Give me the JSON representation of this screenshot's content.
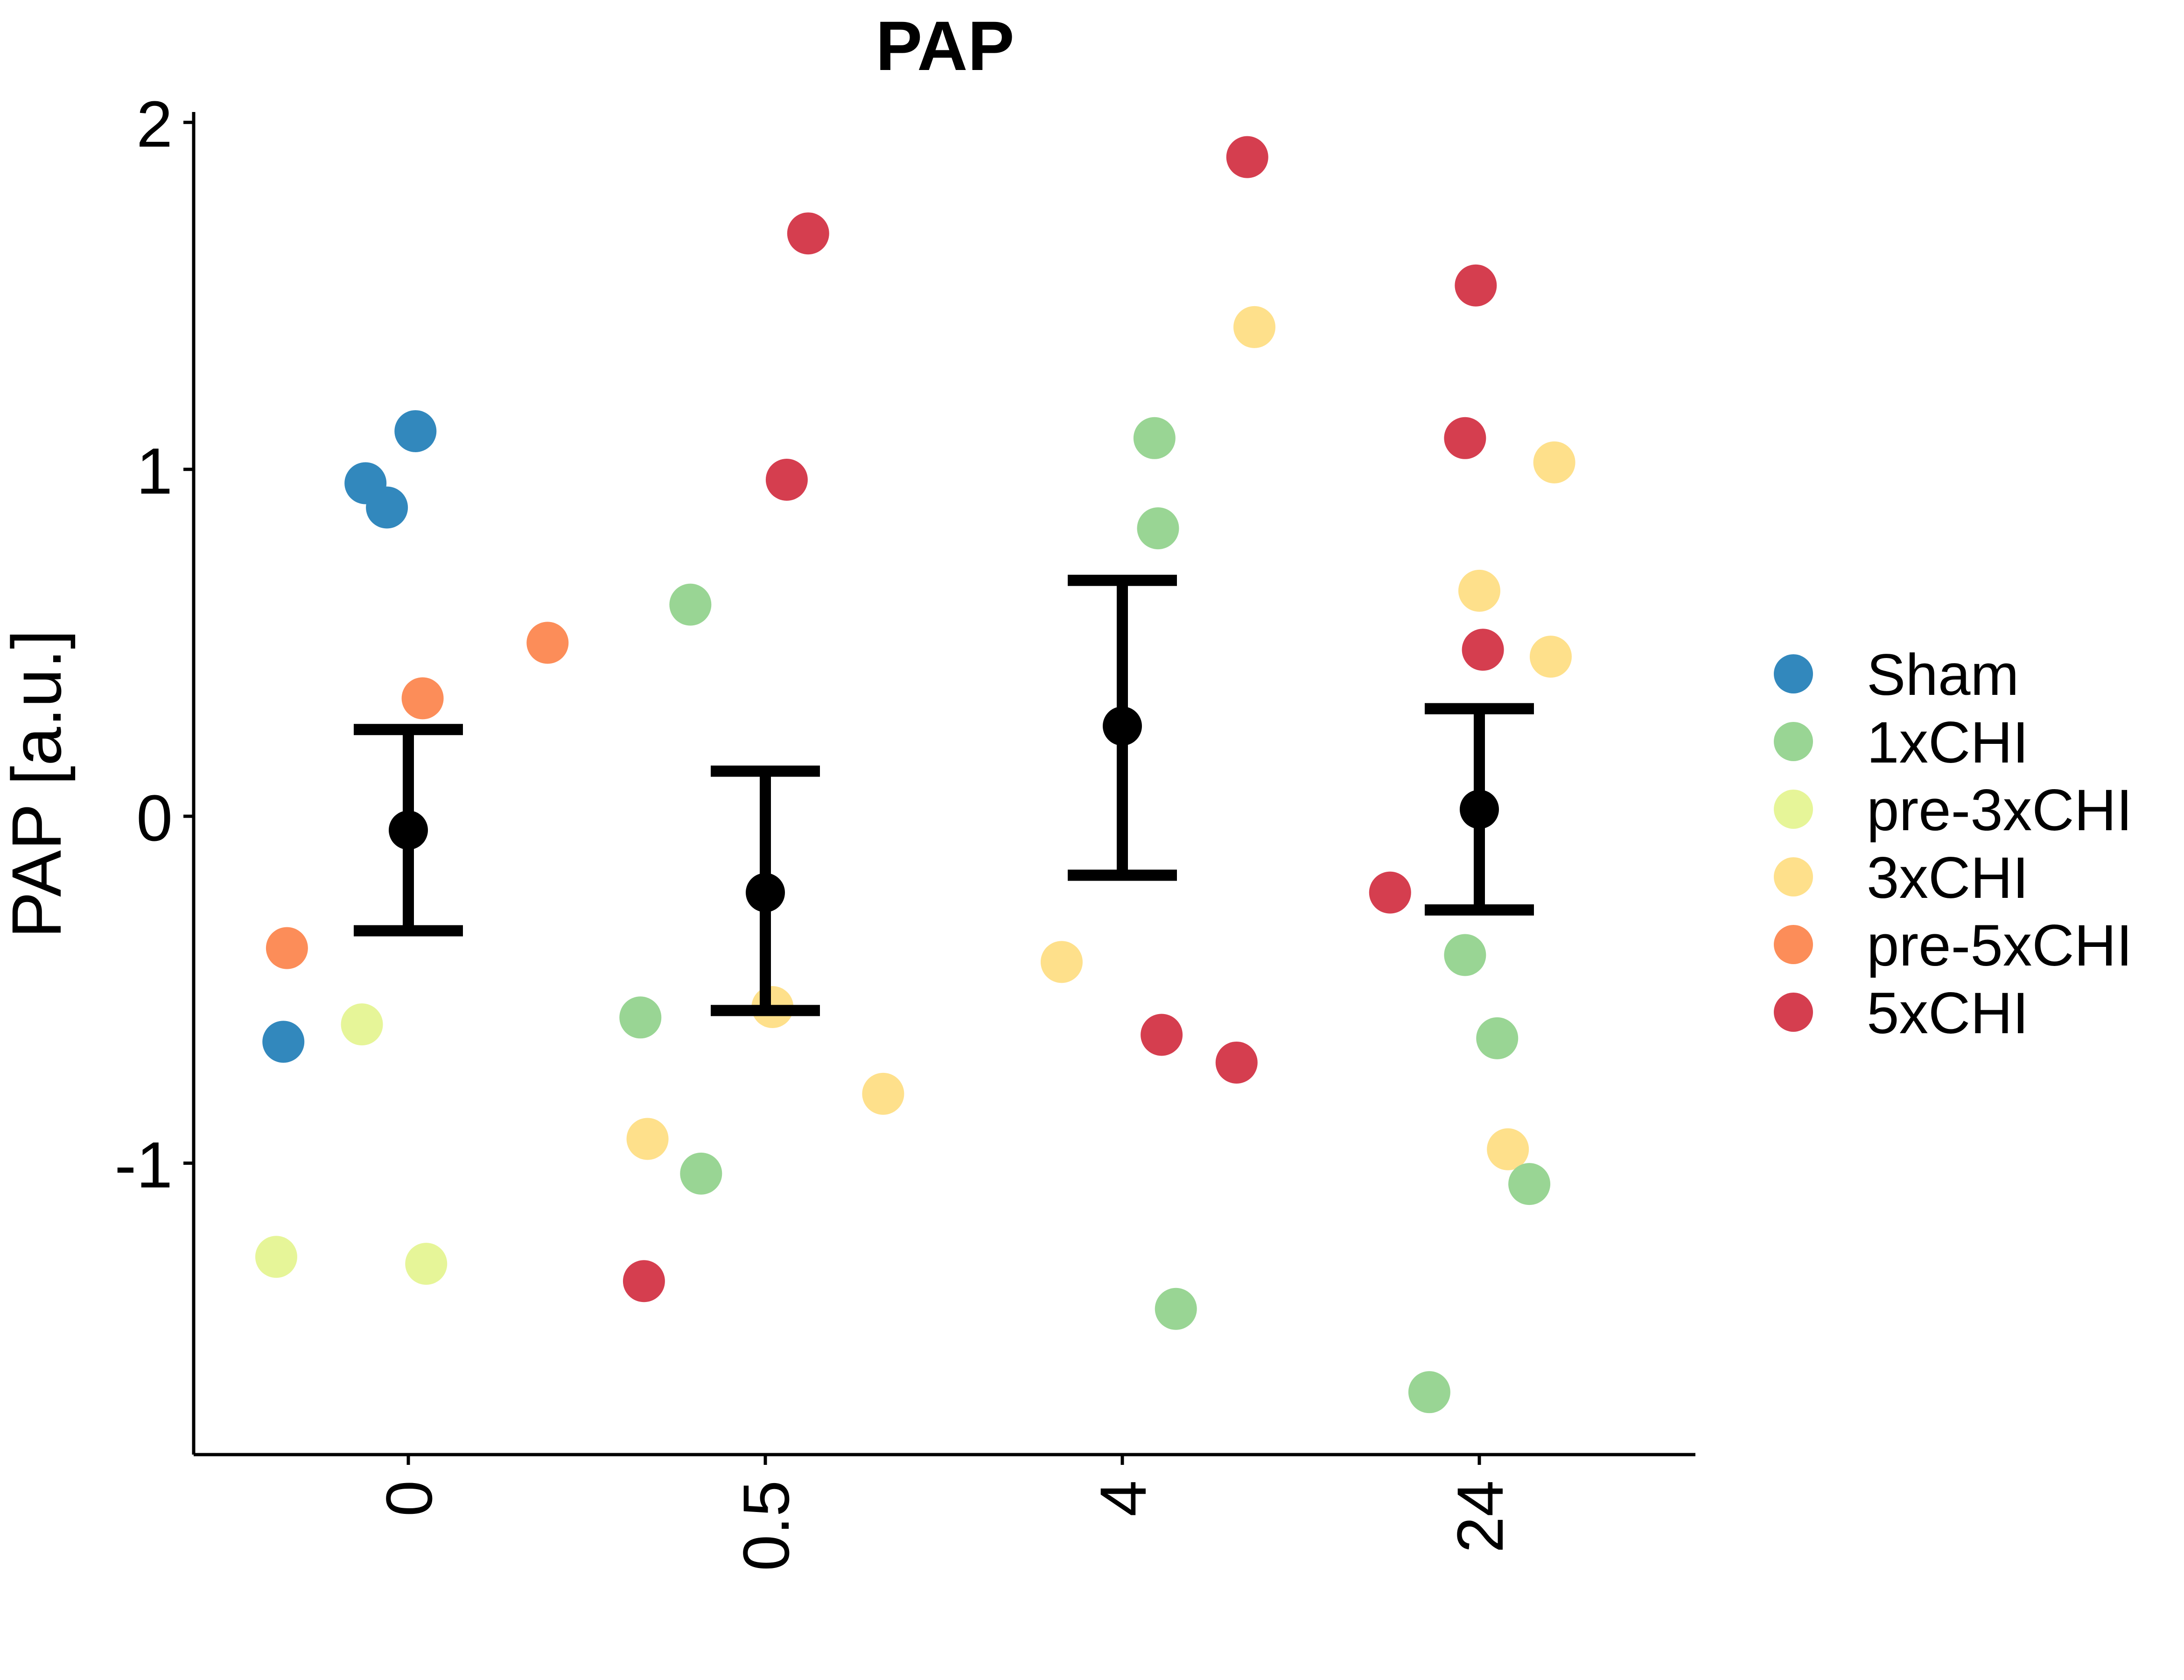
{
  "chart_data": {
    "type": "scatter",
    "title": "PAP",
    "xlabel": "",
    "ylabel": "PAP [a.u.]",
    "categories": [
      "0",
      "0.5",
      "4",
      "24"
    ],
    "ylim": [
      -1.84,
      2.03
    ],
    "yticks": [
      -1,
      0,
      1,
      2
    ],
    "ytick_labels": [
      "-1",
      "0",
      "1",
      "2"
    ],
    "grid": false,
    "legend_position": "right",
    "groups": [
      {
        "name": "Sham",
        "color": "#3288bd"
      },
      {
        "name": "1xCHI",
        "color": "#99d594"
      },
      {
        "name": "pre-3xCHI",
        "color": "#e6f598"
      },
      {
        "name": "3xCHI",
        "color": "#fee08b"
      },
      {
        "name": "pre-5xCHI",
        "color": "#fc8d59"
      },
      {
        "name": "5xCHI",
        "color": "#d53e4f"
      }
    ],
    "points": [
      {
        "group": "Sham",
        "x": -0.35,
        "y": -0.65
      },
      {
        "group": "Sham",
        "x": -0.12,
        "y": 0.96
      },
      {
        "group": "Sham",
        "x": -0.06,
        "y": 0.89
      },
      {
        "group": "Sham",
        "x": 0.02,
        "y": 1.11
      },
      {
        "group": "pre-5xCHI",
        "x": -0.34,
        "y": -0.38
      },
      {
        "group": "pre-5xCHI",
        "x": 0.04,
        "y": 0.34
      },
      {
        "group": "pre-5xCHI",
        "x": 0.39,
        "y": 0.5
      },
      {
        "group": "pre-3xCHI",
        "x": -0.13,
        "y": -0.6
      },
      {
        "group": "pre-3xCHI",
        "x": -0.37,
        "y": -1.27
      },
      {
        "group": "pre-3xCHI",
        "x": 0.05,
        "y": -1.29
      },
      {
        "group": "1xCHI",
        "x": 0.79,
        "y": 0.61
      },
      {
        "group": "1xCHI",
        "x": 0.65,
        "y": -0.58
      },
      {
        "group": "1xCHI",
        "x": 0.82,
        "y": -1.03
      },
      {
        "group": "3xCHI",
        "x": 0.67,
        "y": -0.93
      },
      {
        "group": "3xCHI",
        "x": 1.02,
        "y": -0.55
      },
      {
        "group": "3xCHI",
        "x": 1.33,
        "y": -0.8
      },
      {
        "group": "5xCHI",
        "x": 1.12,
        "y": 1.68
      },
      {
        "group": "5xCHI",
        "x": 1.06,
        "y": 0.97
      },
      {
        "group": "5xCHI",
        "x": 0.66,
        "y": -1.34
      },
      {
        "group": "1xCHI",
        "x": 2.09,
        "y": 1.09
      },
      {
        "group": "1xCHI",
        "x": 2.1,
        "y": 0.83
      },
      {
        "group": "1xCHI",
        "x": 2.15,
        "y": -1.42
      },
      {
        "group": "3xCHI",
        "x": 2.37,
        "y": 1.41
      },
      {
        "group": "3xCHI",
        "x": 1.83,
        "y": -0.42
      },
      {
        "group": "5xCHI",
        "x": 2.35,
        "y": 1.9
      },
      {
        "group": "5xCHI",
        "x": 2.11,
        "y": -0.63
      },
      {
        "group": "5xCHI",
        "x": 2.32,
        "y": -0.71
      },
      {
        "group": "5xCHI",
        "x": 2.99,
        "y": 1.53
      },
      {
        "group": "5xCHI",
        "x": 2.96,
        "y": 1.09
      },
      {
        "group": "5xCHI",
        "x": 3.01,
        "y": 0.48
      },
      {
        "group": "5xCHI",
        "x": 2.75,
        "y": -0.22
      },
      {
        "group": "3xCHI",
        "x": 3.21,
        "y": 1.02
      },
      {
        "group": "3xCHI",
        "x": 3.0,
        "y": 0.65
      },
      {
        "group": "3xCHI",
        "x": 3.2,
        "y": 0.46
      },
      {
        "group": "3xCHI",
        "x": 3.08,
        "y": -0.96
      },
      {
        "group": "1xCHI",
        "x": 2.96,
        "y": -0.4
      },
      {
        "group": "1xCHI",
        "x": 3.05,
        "y": -0.64
      },
      {
        "group": "1xCHI",
        "x": 3.14,
        "y": -1.06
      },
      {
        "group": "1xCHI",
        "x": 2.86,
        "y": -1.66
      }
    ],
    "summary": [
      {
        "x": 0,
        "mean": -0.04,
        "lower": -0.33,
        "upper": 0.25
      },
      {
        "x": 1,
        "mean": -0.22,
        "lower": -0.56,
        "upper": 0.13
      },
      {
        "x": 2,
        "mean": 0.26,
        "lower": -0.17,
        "upper": 0.68
      },
      {
        "x": 3,
        "mean": 0.02,
        "lower": -0.27,
        "upper": 0.31
      }
    ]
  }
}
